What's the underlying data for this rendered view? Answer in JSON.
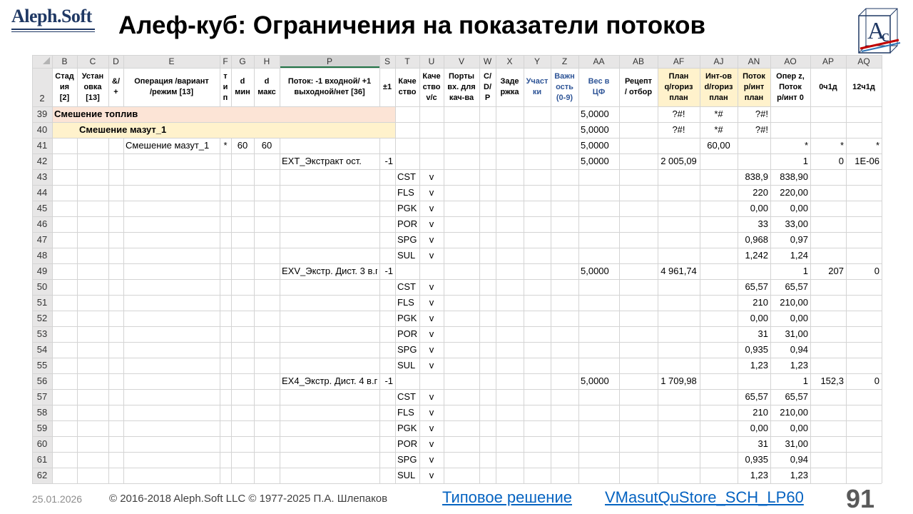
{
  "logo": {
    "text": "Aleph.Soft",
    "badge": [
      "A",
      "c"
    ]
  },
  "title": "Алеф-куб: Ограничения на показатели потоков",
  "table": {
    "columns": [
      "B",
      "C",
      "D",
      "E",
      "F",
      "G",
      "H",
      "P",
      "S",
      "T",
      "U",
      "V",
      "W",
      "X",
      "Y",
      "Z",
      "AA",
      "AB",
      "AF",
      "AJ",
      "AN",
      "AO",
      "AP",
      "AQ"
    ],
    "header_row": 2,
    "headers": [
      [
        "Стад",
        "ия",
        "[2]"
      ],
      [
        "Устан",
        "овка",
        "[13]"
      ],
      [
        "&/",
        "+"
      ],
      [
        "Операция /вариант",
        "/режим [13]"
      ],
      [
        "т",
        "и",
        "п"
      ],
      [
        "d",
        "мин"
      ],
      [
        "d",
        "макс"
      ],
      [
        "Поток: -1 входной/ +1",
        "выходной/нет [36]"
      ],
      [
        "±1"
      ],
      [
        "Каче",
        "ство"
      ],
      [
        "Каче",
        "ство",
        "v/c"
      ],
      [
        "Порты",
        "вх. для",
        "кач-ва"
      ],
      [
        "C/",
        "D/",
        "P"
      ],
      [
        "Заде",
        "ржка"
      ],
      [
        "Участ",
        "ки"
      ],
      [
        "Важн",
        "ость",
        "(0-9)"
      ],
      [
        "Вес в",
        "ЦФ"
      ],
      [
        "Рецепт",
        "/ отбор"
      ],
      [
        "План",
        "q/гориз",
        "план"
      ],
      [
        "Инт-ов",
        "d/гориз",
        "план"
      ],
      [
        "Поток",
        "р/инт",
        "план"
      ],
      [
        "Опер z,",
        "Поток",
        "р/инт 0"
      ],
      [
        "0ч1д"
      ],
      [
        "12ч1д"
      ]
    ],
    "rows": [
      {
        "num": 39,
        "cells": {
          "B": "Смешение топлив",
          "AA": "5,0000",
          "AF": "?#!",
          "AJ": "*#",
          "AN": "?#!"
        }
      },
      {
        "num": 40,
        "cells": {
          "C": "Смешение мазут_1",
          "AA": "5,0000",
          "AF": "?#!",
          "AJ": "*#",
          "AN": "?#!"
        }
      },
      {
        "num": 41,
        "cells": {
          "E": "Смешение мазут_1",
          "F": "*",
          "G": "60",
          "H": "60",
          "AA": "5,0000",
          "AJ": "60,00",
          "AO": "*",
          "AP": "*",
          "AQ": "*"
        }
      },
      {
        "num": 42,
        "cells": {
          "P": "EXT_Экстракт ост.",
          "S": "-1",
          "AA": "5,0000",
          "AF": "2 005,09",
          "AO": "1",
          "AP": "0",
          "AQ": "1E-06"
        }
      },
      {
        "num": 43,
        "cells": {
          "T": "CST",
          "U": "v",
          "AN": "838,9",
          "AO": "838,90"
        }
      },
      {
        "num": 44,
        "cells": {
          "T": "FLS",
          "U": "v",
          "AN": "220",
          "AO": "220,00"
        }
      },
      {
        "num": 45,
        "cells": {
          "T": "PGK",
          "U": "v",
          "AN": "0,00",
          "AO": "0,00"
        }
      },
      {
        "num": 46,
        "cells": {
          "T": "POR",
          "U": "v",
          "AN": "33",
          "AO": "33,00"
        }
      },
      {
        "num": 47,
        "cells": {
          "T": "SPG",
          "U": "v",
          "AN": "0,968",
          "AO": "0,97"
        }
      },
      {
        "num": 48,
        "cells": {
          "T": "SUL",
          "U": "v",
          "AN": "1,242",
          "AO": "1,24"
        }
      },
      {
        "num": 49,
        "cells": {
          "P": "EXV_Экстр. Дист. 3 в.г",
          "S": "-1",
          "AA": "5,0000",
          "AF": "4 961,74",
          "AO": "1",
          "AP": "207",
          "AQ": "0"
        }
      },
      {
        "num": 50,
        "cells": {
          "T": "CST",
          "U": "v",
          "AN": "65,57",
          "AO": "65,57"
        }
      },
      {
        "num": 51,
        "cells": {
          "T": "FLS",
          "U": "v",
          "AN": "210",
          "AO": "210,00"
        }
      },
      {
        "num": 52,
        "cells": {
          "T": "PGK",
          "U": "v",
          "AN": "0,00",
          "AO": "0,00"
        }
      },
      {
        "num": 53,
        "cells": {
          "T": "POR",
          "U": "v",
          "AN": "31",
          "AO": "31,00"
        }
      },
      {
        "num": 54,
        "cells": {
          "T": "SPG",
          "U": "v",
          "AN": "0,935",
          "AO": "0,94"
        }
      },
      {
        "num": 55,
        "cells": {
          "T": "SUL",
          "U": "v",
          "AN": "1,23",
          "AO": "1,23"
        }
      },
      {
        "num": 56,
        "cells": {
          "P": "EX4_Экстр. Дист. 4 в.г",
          "S": "-1",
          "AA": "5,0000",
          "AF": "1 709,98",
          "AO": "1",
          "AP": "152,3",
          "AQ": "0"
        }
      },
      {
        "num": 57,
        "cells": {
          "T": "CST",
          "U": "v",
          "AN": "65,57",
          "AO": "65,57"
        }
      },
      {
        "num": 58,
        "cells": {
          "T": "FLS",
          "U": "v",
          "AN": "210",
          "AO": "210,00"
        }
      },
      {
        "num": 59,
        "cells": {
          "T": "PGK",
          "U": "v",
          "AN": "0,00",
          "AO": "0,00"
        }
      },
      {
        "num": 60,
        "cells": {
          "T": "POR",
          "U": "v",
          "AN": "31",
          "AO": "31,00"
        }
      },
      {
        "num": 61,
        "cells": {
          "T": "SPG",
          "U": "v",
          "AN": "0,935",
          "AO": "0,94"
        }
      },
      {
        "num": 62,
        "cells": {
          "T": "SUL",
          "U": "v",
          "AN": "1,23",
          "AO": "1,23"
        }
      }
    ]
  },
  "footer": {
    "date": "25.01.2026",
    "copyright": "© 2016-2018 Aleph.Soft LLC © 1977-2025 П.А. Шлепаков",
    "links": [
      "Типовое решение",
      "VMasutQuStore_SCH_LP60"
    ],
    "page": 91
  }
}
